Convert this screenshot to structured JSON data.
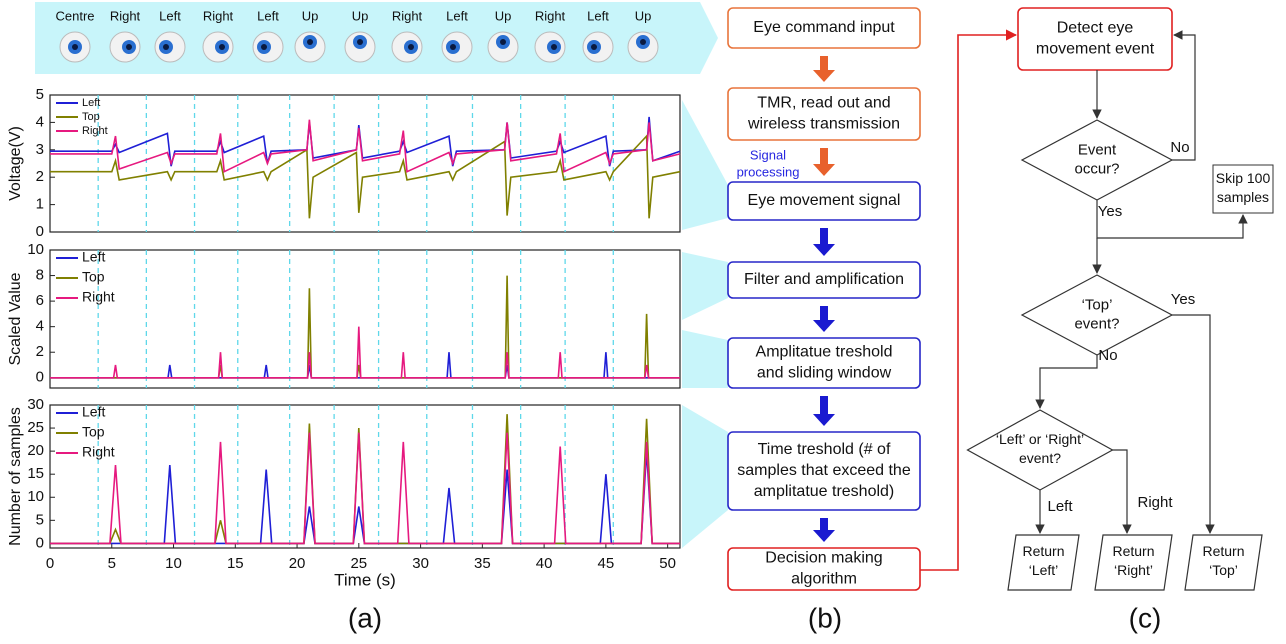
{
  "eye_labels": [
    "Centre",
    "Right",
    "Left",
    "Right",
    "Left",
    "Up",
    "Up",
    "Right",
    "Left",
    "Up",
    "Right",
    "Left",
    "Up"
  ],
  "event_lines": [
    3.9,
    7.8,
    11.7,
    15.2,
    19.4,
    23,
    26.6,
    30.5,
    34.2,
    38.1,
    41.7,
    45.6
  ],
  "chart_data": [
    {
      "type": "line",
      "ylabel": "Voltage(V)",
      "xlim": [
        0,
        51
      ],
      "ylim": [
        0,
        5
      ],
      "yticks": [
        0,
        1,
        2,
        3,
        4,
        5
      ],
      "legend": "upper left",
      "x": [
        0,
        5,
        5.3,
        5.6,
        9.5,
        9.8,
        10.1,
        13.5,
        13.8,
        14.1,
        17.3,
        17.6,
        17.9,
        20.8,
        21.0,
        21.3,
        24.8,
        25.0,
        25.3,
        28.3,
        28.6,
        28.9,
        32.3,
        32.6,
        32.9,
        36.8,
        37.0,
        37.3,
        41,
        41.3,
        41.6,
        45,
        45.3,
        45.6,
        48.3,
        48.5,
        48.8,
        51
      ],
      "series": [
        {
          "name": "Left",
          "color": "#1f1fd6",
          "values": [
            2.95,
            2.95,
            3.2,
            2.9,
            3.6,
            2.4,
            2.95,
            2.95,
            3.3,
            2.9,
            3.5,
            2.5,
            2.95,
            3.0,
            4.0,
            2.7,
            3.0,
            3.9,
            2.7,
            2.95,
            3.3,
            2.9,
            3.5,
            2.4,
            2.95,
            3.0,
            4.0,
            2.7,
            2.95,
            3.3,
            2.9,
            3.5,
            2.4,
            2.95,
            3.0,
            4.2,
            2.6,
            2.95
          ]
        },
        {
          "name": "Top",
          "color": "#808000",
          "values": [
            2.2,
            2.2,
            2.6,
            1.9,
            2.2,
            1.9,
            2.2,
            2.2,
            2.6,
            1.9,
            2.2,
            1.9,
            2.2,
            3.0,
            0.5,
            2.0,
            2.9,
            0.7,
            2.0,
            2.2,
            2.6,
            1.9,
            2.2,
            1.9,
            2.2,
            3.3,
            0.6,
            2.0,
            2.2,
            2.6,
            1.9,
            2.2,
            1.9,
            2.2,
            3.5,
            0.5,
            2.0,
            2.2
          ]
        },
        {
          "name": "Right",
          "color": "#e6197f",
          "values": [
            2.85,
            2.85,
            3.5,
            2.3,
            2.9,
            2.5,
            2.85,
            2.85,
            3.6,
            2.2,
            2.9,
            2.5,
            2.85,
            3.0,
            4.1,
            2.6,
            3.0,
            3.8,
            2.6,
            2.85,
            3.7,
            2.2,
            2.9,
            2.5,
            2.85,
            3.0,
            4.0,
            2.6,
            2.85,
            3.6,
            2.2,
            2.9,
            2.5,
            2.85,
            3.0,
            4.0,
            2.6,
            2.85
          ]
        }
      ]
    },
    {
      "type": "line",
      "ylabel": "Scaled Value",
      "xlim": [
        0,
        51
      ],
      "ylim": [
        -0.8,
        10
      ],
      "yticks": [
        0,
        2,
        4,
        6,
        8,
        10
      ],
      "legend": "upper left",
      "x": [
        0,
        5.15,
        5.3,
        5.45,
        9.55,
        9.7,
        9.85,
        13.65,
        13.8,
        13.95,
        17.35,
        17.5,
        17.65,
        20.85,
        21,
        21.15,
        24.85,
        25,
        25.15,
        28.45,
        28.6,
        28.75,
        32.15,
        32.3,
        32.45,
        36.85,
        37,
        37.15,
        41.15,
        41.3,
        41.45,
        44.85,
        45,
        45.15,
        48.15,
        48.3,
        48.45,
        51
      ],
      "series": [
        {
          "name": "Left",
          "color": "#1f1fd6",
          "values": [
            0,
            0,
            0,
            0,
            0,
            1,
            0,
            0,
            0,
            0,
            0,
            1,
            0,
            0,
            1,
            0,
            0,
            0,
            0,
            0,
            0,
            0,
            0,
            2,
            0,
            0,
            1,
            0,
            0,
            0,
            0,
            0,
            2,
            0,
            0,
            0,
            0,
            0
          ]
        },
        {
          "name": "Top",
          "color": "#808000",
          "values": [
            0,
            0,
            0,
            0,
            0,
            0,
            0,
            0,
            1,
            0,
            0,
            0,
            0,
            0,
            7,
            0,
            0,
            1,
            0,
            0,
            0,
            0,
            0,
            0,
            0,
            0,
            8,
            0,
            0,
            0,
            0,
            0,
            0,
            0,
            0,
            5,
            0,
            0
          ]
        },
        {
          "name": "Right",
          "color": "#e6197f",
          "values": [
            0,
            0,
            1,
            0,
            0,
            0,
            0,
            0,
            2,
            0,
            0,
            0,
            0,
            0,
            2,
            0,
            0,
            4,
            0,
            0,
            2,
            0,
            0,
            0,
            0,
            0,
            2,
            0,
            0,
            2,
            0,
            0,
            0,
            0,
            0,
            1,
            0,
            0
          ]
        }
      ]
    },
    {
      "type": "line",
      "ylabel": "Number of samples",
      "xlabel": "Time (s)",
      "xlim": [
        0,
        51
      ],
      "ylim": [
        -1,
        30
      ],
      "yticks": [
        0,
        5,
        10,
        15,
        20,
        25,
        30
      ],
      "xticks": [
        0,
        5,
        10,
        15,
        20,
        25,
        30,
        35,
        40,
        45,
        50
      ],
      "legend": "upper left",
      "x": [
        0,
        4.85,
        5.3,
        5.75,
        9.25,
        9.7,
        10.15,
        13.35,
        13.8,
        14.25,
        17.05,
        17.5,
        17.95,
        20.55,
        21,
        21.45,
        24.55,
        25,
        25.45,
        28.15,
        28.6,
        29.05,
        31.85,
        32.3,
        32.75,
        36.55,
        37,
        37.45,
        40.85,
        41.3,
        41.75,
        44.55,
        45,
        45.45,
        47.85,
        48.3,
        48.75,
        51
      ],
      "series": [
        {
          "name": "Left",
          "color": "#1f1fd6",
          "values": [
            0,
            0,
            0,
            0,
            0,
            17,
            0,
            0,
            0,
            0,
            0,
            16,
            0,
            0,
            8,
            0,
            0,
            8,
            0,
            0,
            0,
            0,
            0,
            12,
            0,
            0,
            16,
            0,
            0,
            0,
            0,
            0,
            15,
            0,
            0,
            20,
            0,
            0
          ]
        },
        {
          "name": "Top",
          "color": "#808000",
          "values": [
            0,
            0,
            3,
            0,
            0,
            0,
            0,
            0,
            5,
            0,
            0,
            0,
            0,
            0,
            26,
            0,
            0,
            25,
            0,
            0,
            0,
            0,
            0,
            0,
            0,
            0,
            28,
            0,
            0,
            0,
            0,
            0,
            0,
            0,
            0,
            27,
            0,
            0
          ]
        },
        {
          "name": "Right",
          "color": "#e6197f",
          "values": [
            0,
            0,
            17,
            0,
            0,
            0,
            0,
            0,
            22,
            0,
            0,
            0,
            0,
            0,
            24,
            0,
            0,
            24,
            0,
            0,
            22,
            0,
            0,
            0,
            0,
            0,
            24,
            0,
            0,
            21,
            0,
            0,
            0,
            0,
            0,
            22,
            0,
            0
          ]
        }
      ]
    }
  ],
  "panel_labels": [
    "(a)",
    "(b)",
    "(c)"
  ],
  "flow_b": {
    "nodes": [
      {
        "lines": [
          "Eye command input"
        ]
      },
      {
        "lines": [
          "TMR, read out and",
          "wireless transmission"
        ]
      },
      {
        "lines": [
          "Eye movement signal"
        ]
      },
      {
        "lines": [
          "Filter and amplification"
        ]
      },
      {
        "lines": [
          "Amplitatue treshold",
          "and sliding window"
        ]
      },
      {
        "lines": [
          "Time treshold (# of",
          "samples that exceed the",
          "amplitatue treshold)"
        ]
      },
      {
        "lines": [
          "Decision making",
          "algorithm"
        ]
      }
    ],
    "note": [
      "Signal",
      "processing"
    ]
  },
  "flow_c": {
    "nodes": [
      {
        "lines": [
          "Detect eye",
          "movement event"
        ]
      },
      {
        "lines": [
          "Event",
          "occur?"
        ]
      },
      {
        "lines": [
          "Skip 100",
          "samples"
        ]
      },
      {
        "lines": [
          "‘Top’",
          "event?"
        ]
      },
      {
        "lines": [
          "‘Left’ or ‘Right’",
          "event?"
        ]
      },
      {
        "lines": [
          "Return",
          "‘Left’"
        ]
      },
      {
        "lines": [
          "Return",
          "‘Right’"
        ]
      },
      {
        "lines": [
          "Return",
          "‘Top’"
        ]
      }
    ],
    "labels": [
      "No",
      "Yes",
      "Yes",
      "No",
      "Left",
      "Right"
    ]
  }
}
